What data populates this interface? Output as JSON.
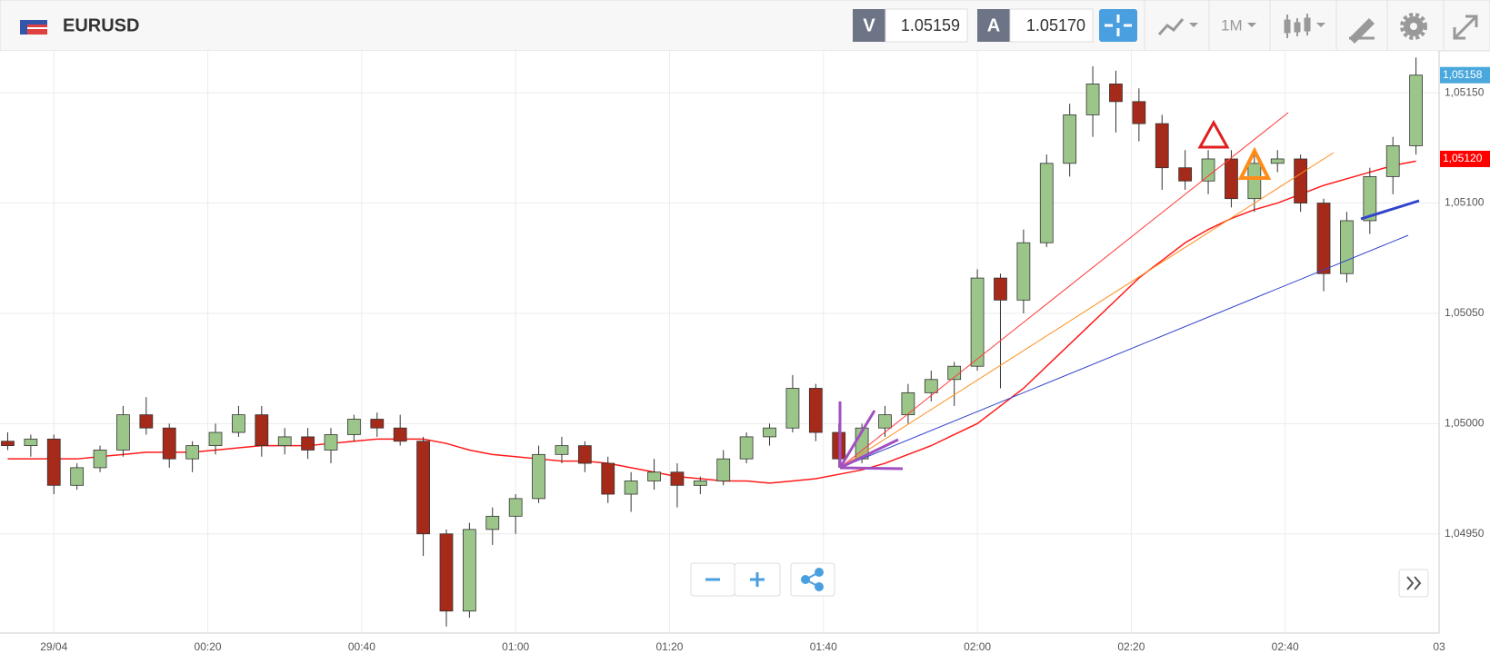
{
  "toolbar": {
    "symbol": "EURUSD",
    "sell_label": "V",
    "sell_price": "1.05159",
    "buy_label": "A",
    "buy_price": "1.05170",
    "timeframe": "1M"
  },
  "chart_data": {
    "type": "candlestick",
    "x": [
      -6,
      -3,
      0,
      3,
      6,
      9,
      12,
      15,
      18,
      21,
      24,
      27,
      30,
      33,
      36,
      39,
      42,
      45,
      48,
      51,
      54,
      57,
      60,
      63,
      66,
      69,
      72,
      75,
      78,
      81,
      84,
      87,
      90,
      93,
      96,
      99,
      102,
      105,
      108,
      111,
      114,
      117,
      120,
      123,
      126,
      129,
      132,
      135,
      138,
      141,
      144,
      147,
      150,
      153,
      156,
      159,
      162,
      165,
      168,
      171,
      174,
      177
    ],
    "open": [
      1.04992,
      1.0499,
      1.04993,
      1.04972,
      1.0498,
      1.04988,
      1.05004,
      1.04998,
      1.04984,
      1.0499,
      1.04996,
      1.05004,
      1.0499,
      1.04994,
      1.04988,
      1.04995,
      1.05002,
      1.04998,
      1.04992,
      1.0495,
      1.04915,
      1.04952,
      1.04958,
      1.04966,
      1.04986,
      1.0499,
      1.04982,
      1.04968,
      1.04974,
      1.04978,
      1.04972,
      1.04974,
      1.04984,
      1.04994,
      1.04998,
      1.05016,
      1.04996,
      1.04984,
      1.04998,
      1.05004,
      1.05014,
      1.0502,
      1.05026,
      1.05066,
      1.05056,
      1.05082,
      1.05118,
      1.0514,
      1.05154,
      1.05146,
      1.05136,
      1.05116,
      1.0511,
      1.0512,
      1.05102,
      1.05118,
      1.0512,
      1.051,
      1.05068,
      1.05092,
      1.05112,
      1.05126
    ],
    "high": [
      1.04996,
      1.04995,
      1.04995,
      1.04982,
      1.0499,
      1.05008,
      1.05012,
      1.05,
      1.04992,
      1.05,
      1.05008,
      1.05008,
      1.04998,
      1.04998,
      1.04998,
      1.05004,
      1.05005,
      1.05004,
      1.04994,
      1.04952,
      1.04955,
      1.04962,
      1.04968,
      1.0499,
      1.04994,
      1.04992,
      1.04985,
      1.04978,
      1.04984,
      1.04982,
      1.04976,
      1.04988,
      1.04996,
      1.05,
      1.05022,
      1.05018,
      1.05,
      1.05,
      1.05008,
      1.05018,
      1.05024,
      1.05028,
      1.0507,
      1.05068,
      1.05088,
      1.05122,
      1.05145,
      1.05162,
      1.0516,
      1.05152,
      1.0514,
      1.05124,
      1.05124,
      1.05124,
      1.05122,
      1.05124,
      1.05122,
      1.05102,
      1.05096,
      1.05116,
      1.0513,
      1.05166
    ],
    "low": [
      1.04988,
      1.04985,
      1.04968,
      1.0497,
      1.04978,
      1.04985,
      1.04995,
      1.0498,
      1.04978,
      1.04986,
      1.04994,
      1.04985,
      1.04986,
      1.04984,
      1.04982,
      1.04992,
      1.04994,
      1.0499,
      1.0494,
      1.04908,
      1.04912,
      1.04945,
      1.0495,
      1.04964,
      1.04982,
      1.04978,
      1.04964,
      1.0496,
      1.0497,
      1.04962,
      1.04968,
      1.04972,
      1.04982,
      1.0499,
      1.04996,
      1.04992,
      1.0498,
      1.04982,
      1.04994,
      1.05,
      1.0501,
      1.05008,
      1.05024,
      1.05016,
      1.0505,
      1.0508,
      1.05112,
      1.0513,
      1.05132,
      1.05128,
      1.05106,
      1.05106,
      1.05104,
      1.05098,
      1.05096,
      1.05114,
      1.05096,
      1.0506,
      1.05064,
      1.05086,
      1.05104,
      1.05122
    ],
    "close": [
      1.0499,
      1.04993,
      1.04972,
      1.0498,
      1.04988,
      1.05004,
      1.04998,
      1.04984,
      1.0499,
      1.04996,
      1.05004,
      1.0499,
      1.04994,
      1.04988,
      1.04995,
      1.05002,
      1.04998,
      1.04992,
      1.0495,
      1.04915,
      1.04952,
      1.04958,
      1.04966,
      1.04986,
      1.0499,
      1.04982,
      1.04968,
      1.04974,
      1.04978,
      1.04972,
      1.04974,
      1.04984,
      1.04994,
      1.04998,
      1.05016,
      1.04996,
      1.04984,
      1.04998,
      1.05004,
      1.05014,
      1.0502,
      1.05026,
      1.05066,
      1.05056,
      1.05082,
      1.05118,
      1.0514,
      1.05154,
      1.05146,
      1.05136,
      1.05116,
      1.0511,
      1.0512,
      1.05102,
      1.05118,
      1.0512,
      1.051,
      1.05068,
      1.05092,
      1.05112,
      1.05126,
      1.05158
    ],
    "up_color": "#9cc58a",
    "down_color": "#a52a1a",
    "ma": {
      "color": "#ff1a1a",
      "values": [
        1.04984,
        1.04984,
        1.04984,
        1.04984,
        1.04985,
        1.04986,
        1.04987,
        1.04987,
        1.04987,
        1.04988,
        1.04989,
        1.0499,
        1.0499,
        1.0499,
        1.04991,
        1.04992,
        1.04993,
        1.04993,
        1.04993,
        1.04991,
        1.04988,
        1.04986,
        1.04985,
        1.04984,
        1.04983,
        1.04983,
        1.04982,
        1.0498,
        1.04978,
        1.04976,
        1.04975,
        1.04974,
        1.04974,
        1.04973,
        1.04974,
        1.04975,
        1.04977,
        1.04979,
        1.04982,
        1.04986,
        1.0499,
        1.04995,
        1.05,
        1.05008,
        1.05016,
        1.05026,
        1.05036,
        1.05046,
        1.05056,
        1.05066,
        1.05074,
        1.05082,
        1.05088,
        1.05093,
        1.05097,
        1.051,
        1.05104,
        1.05108,
        1.05111,
        1.05114,
        1.05117,
        1.05119
      ]
    },
    "xlim": [
      -7,
      180
    ],
    "xticks": [
      {
        "value": 0,
        "label": "29/04"
      },
      {
        "value": 20,
        "label": "00:20"
      },
      {
        "value": 40,
        "label": "00:40"
      },
      {
        "value": 60,
        "label": "01:00"
      },
      {
        "value": 80,
        "label": "01:20"
      },
      {
        "value": 100,
        "label": "01:40"
      },
      {
        "value": 120,
        "label": "02:00"
      },
      {
        "value": 140,
        "label": "02:20"
      },
      {
        "value": 160,
        "label": "02:40"
      },
      {
        "value": 180,
        "label": "03"
      }
    ],
    "ylim": [
      1.04905,
      1.05169
    ],
    "yticks": [
      {
        "value": 1.0495,
        "label": "1,04950"
      },
      {
        "value": 1.05,
        "label": "1,05000"
      },
      {
        "value": 1.0505,
        "label": "1,05050"
      },
      {
        "value": 1.051,
        "label": "1,05100"
      },
      {
        "value": 1.0515,
        "label": "1,05150"
      }
    ],
    "grid": true,
    "price_tags": [
      {
        "value": 1.05158,
        "label": "1,05158",
        "color": "#4aa8dc"
      },
      {
        "value": 1.0512,
        "label": "1,05120",
        "color": "#ff0000"
      }
    ]
  }
}
